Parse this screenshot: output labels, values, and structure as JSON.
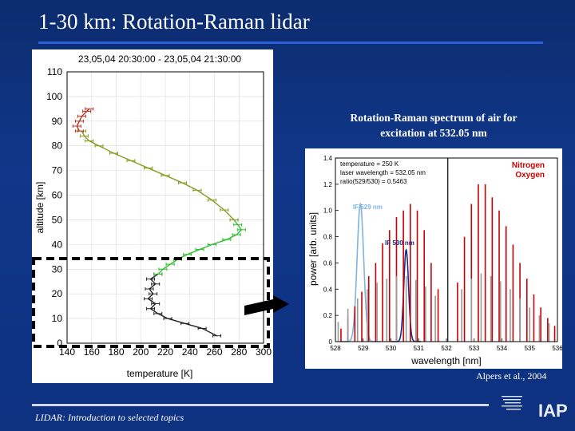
{
  "slide": {
    "title": "1-30 km: Rotation-Raman lidar",
    "footer": "LIDAR: Introduction to selected topics",
    "source": "Alpers et al., 2004"
  },
  "spectrum": {
    "caption_line1": "Rotation-Raman spectrum of air for",
    "caption_line2": "excitation at 532.05 nm"
  },
  "colors": {
    "background": "#0c2c6e",
    "title_rule": "#2e5fd6",
    "dashed_box": "#000000"
  },
  "chart_data": [
    {
      "type": "line",
      "title": "23,05,04 20:30:00 - 23,05,04 21:30:00",
      "xlabel": "temperature [K]",
      "ylabel": "altitude [km]",
      "xlim": [
        140,
        300
      ],
      "ylim": [
        0,
        110
      ],
      "xticks": [
        "140",
        "160",
        "180",
        "200",
        "220",
        "240",
        "260",
        "280",
        "300"
      ],
      "yticks": [
        "0",
        "10",
        "20",
        "30",
        "40",
        "50",
        "60",
        "70",
        "80",
        "90",
        "100",
        "110"
      ],
      "series": [
        {
          "color": "#222222",
          "x": [
            262,
            250,
            236,
            222,
            214,
            208,
            212,
            206,
            210,
            207,
            212,
            208,
            214
          ],
          "y": [
            3,
            6,
            8,
            10,
            12,
            14,
            16,
            18,
            20,
            22,
            24,
            26,
            28
          ]
        },
        {
          "color": "#2fbf2f",
          "x": [
            214,
            218,
            224,
            230,
            238,
            248,
            258,
            270,
            278,
            282,
            279,
            276
          ],
          "y": [
            28,
            30,
            32,
            34,
            36,
            38,
            40,
            42,
            44,
            46,
            48,
            50
          ]
        },
        {
          "color": "#8a9a20",
          "x": [
            276,
            268,
            258,
            246,
            234,
            220,
            206,
            192,
            178,
            166,
            158,
            154,
            152
          ],
          "y": [
            50,
            54,
            58,
            62,
            65,
            68,
            71,
            74,
            77,
            80,
            82,
            84,
            86
          ]
        },
        {
          "color": "#c03020",
          "x": [
            150,
            148,
            150,
            152,
            156,
            158
          ],
          "y": [
            86,
            88,
            90,
            92,
            94,
            95
          ]
        }
      ]
    },
    {
      "type": "bar",
      "xlabel": "wavelength [nm]",
      "ylabel": "power [arb. units]",
      "xlim": [
        528,
        536
      ],
      "ylim": [
        0,
        1.4
      ],
      "xticks": [
        "528",
        "529",
        "530",
        "531",
        "532",
        "533",
        "534",
        "535",
        "536"
      ],
      "yticks": [
        "0",
        "0.2",
        "0.4",
        "0.6",
        "0.8",
        "1.0",
        "1.2",
        "1.4"
      ],
      "annotation": {
        "line1": "temperature = 250 K",
        "line2": "laser wavelength = 532.05 nm",
        "line3": "ratio(529/530) = 0.5463"
      },
      "filters": [
        {
          "label": "IF 529 nm",
          "color": "#7fb3e0",
          "center": 528.9,
          "width": 0.25,
          "peak": 1.05
        },
        {
          "label": "IF 530 nm",
          "color": "#1a2a8a",
          "center": 530.55,
          "width": 0.18,
          "peak": 0.7
        }
      ],
      "series": [
        {
          "name": "Nitrogen",
          "color": "#cc0000",
          "positions": [
            528.2,
            528.45,
            528.7,
            528.95,
            529.2,
            529.45,
            529.7,
            529.95,
            530.2,
            530.45,
            530.7,
            530.95,
            531.2,
            531.45,
            531.7,
            532.4,
            532.65,
            532.9,
            533.15,
            533.4,
            533.65,
            533.9,
            534.15,
            534.4,
            534.65,
            534.9,
            535.15,
            535.4,
            535.65,
            535.9
          ],
          "values": [
            0.1,
            0.18,
            0.27,
            0.38,
            0.5,
            0.6,
            0.75,
            0.85,
            0.95,
            1.0,
            1.05,
            1.0,
            0.85,
            0.6,
            0.4,
            0.45,
            0.8,
            1.05,
            1.2,
            1.2,
            1.1,
            1.0,
            0.88,
            0.74,
            0.6,
            0.48,
            0.36,
            0.26,
            0.18,
            0.12
          ]
        },
        {
          "name": "Oxygen",
          "color": "#999999",
          "positions": [
            528.1,
            528.45,
            528.8,
            529.15,
            529.5,
            529.85,
            530.2,
            530.55,
            530.9,
            531.25,
            531.6,
            532.55,
            532.9,
            533.25,
            533.6,
            533.95,
            534.3,
            534.65,
            535.0,
            535.35,
            535.7
          ],
          "values": [
            0.15,
            0.25,
            0.33,
            0.4,
            0.45,
            0.48,
            0.5,
            0.5,
            0.47,
            0.42,
            0.35,
            0.4,
            0.48,
            0.52,
            0.5,
            0.46,
            0.4,
            0.33,
            0.26,
            0.2,
            0.14
          ]
        }
      ]
    }
  ]
}
